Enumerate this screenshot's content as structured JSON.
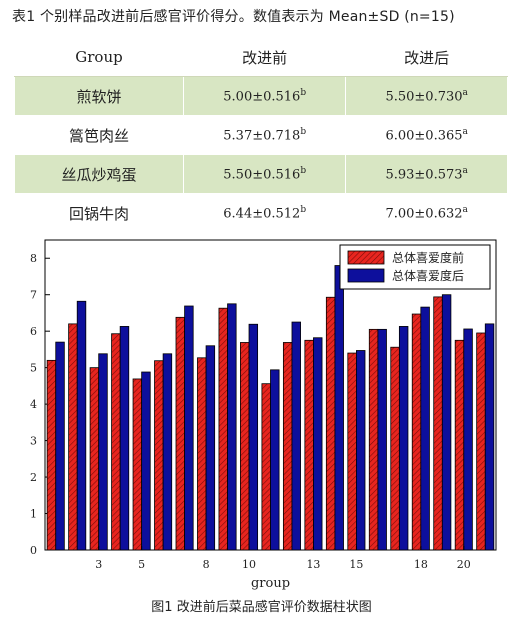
{
  "table_caption": "表1 个别样品改进前后感官评价得分。数值表示为 Mean±SD (n=15)",
  "table": {
    "headers": [
      "Group",
      "改进前",
      "改进后"
    ],
    "rows": [
      {
        "name": "煎软饼",
        "before": "5.00±0.516",
        "before_sup": "b",
        "after": "5.50±0.730",
        "after_sup": "a"
      },
      {
        "name": "篙笆肉丝",
        "before": "5.37±0.718",
        "before_sup": "b",
        "after": "6.00±0.365",
        "after_sup": "a"
      },
      {
        "name": "丝瓜炒鸡蛋",
        "before": "5.50±0.516",
        "before_sup": "b",
        "after": "5.93±0.573",
        "after_sup": "a"
      },
      {
        "name": "回锅牛肉",
        "before": "6.44±0.512",
        "before_sup": "b",
        "after": "7.00±0.632",
        "after_sup": "a"
      }
    ]
  },
  "figure_caption": "图1 改进前后菜品感官评价数据柱状图",
  "chart_data": {
    "type": "bar",
    "xlabel": "group",
    "ylabel": "",
    "ylim": [
      0,
      8.5
    ],
    "yticks": [
      0,
      1,
      2,
      3,
      4,
      5,
      6,
      7,
      8
    ],
    "categories": [
      1,
      2,
      3,
      4,
      5,
      6,
      7,
      8,
      9,
      10,
      11,
      12,
      13,
      14,
      15,
      16,
      17,
      18,
      19,
      20,
      21
    ],
    "xtick_labels": [
      {
        "category": 3,
        "label": "3"
      },
      {
        "category": 5,
        "label": "5"
      },
      {
        "category": 8,
        "label": "8"
      },
      {
        "category": 10,
        "label": "10"
      },
      {
        "category": 13,
        "label": "13"
      },
      {
        "category": 15,
        "label": "15"
      },
      {
        "category": 18,
        "label": "18"
      },
      {
        "category": 20,
        "label": "20"
      }
    ],
    "legend_position": "top-right",
    "series": [
      {
        "name": "总体喜爱度前",
        "color": "#e8251f",
        "hatch": "diagonal",
        "values": [
          5.2,
          6.2,
          5.0,
          5.93,
          4.69,
          5.19,
          6.38,
          5.27,
          6.63,
          5.69,
          4.56,
          5.69,
          5.75,
          6.93,
          5.4,
          6.05,
          5.56,
          6.47,
          6.94,
          5.75,
          5.95
        ]
      },
      {
        "name": "总体喜爱度后",
        "color": "#0d0f9c",
        "hatch": "none",
        "values": [
          5.7,
          6.82,
          5.38,
          6.13,
          4.88,
          5.38,
          6.69,
          5.6,
          6.75,
          6.19,
          4.94,
          6.25,
          5.82,
          7.8,
          5.47,
          6.05,
          6.13,
          6.66,
          7.0,
          6.06,
          6.2
        ]
      }
    ],
    "colors": {
      "axis": "#000000",
      "text": "#222222"
    }
  }
}
